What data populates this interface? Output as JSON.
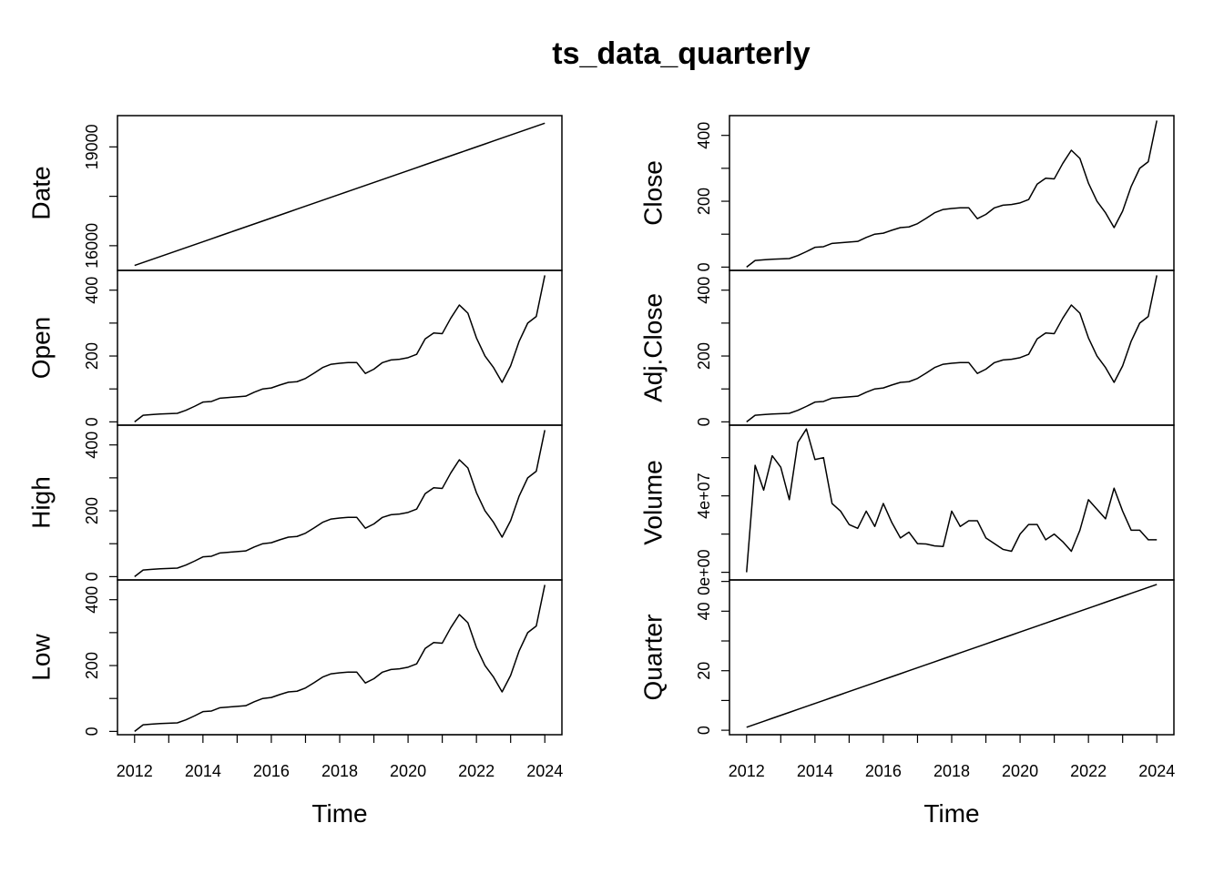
{
  "chart_data": {
    "type": "line",
    "title": "ts_data_quarterly",
    "xlabel": "Time",
    "xlim": [
      2011.5,
      2024.5
    ],
    "x_ticks": [
      "2012",
      "2014",
      "2016",
      "2018",
      "2020",
      "2022",
      "2024"
    ],
    "x_tick_values": [
      2012,
      2014,
      2016,
      2018,
      2020,
      2022,
      2024
    ],
    "x_start": 2012.0,
    "x_step": 0.25,
    "columns": [
      {
        "series": [
          {
            "name": "Date",
            "ylim": [
              15250,
              19950
            ],
            "y_ticks": [
              "16000",
              "19000"
            ],
            "y_tick_values": [
              16000,
              19000
            ],
            "values": [
              15400,
              15490,
              15580,
              15670,
              15760,
              15850,
              15940,
              16030,
              16120,
              16210,
              16300,
              16390,
              16480,
              16570,
              16660,
              16750,
              16840,
              16930,
              17020,
              17110,
              17200,
              17290,
              17380,
              17470,
              17560,
              17650,
              17740,
              17830,
              17920,
              18010,
              18100,
              18190,
              18280,
              18370,
              18460,
              18550,
              18640,
              18730,
              18820,
              18910,
              19000,
              19090,
              19180,
              19270,
              19360,
              19450,
              19540,
              19630,
              19720
            ]
          },
          {
            "name": "Open",
            "ylim": [
              -10,
              460
            ],
            "y_ticks": [
              "0",
              "200",
              "400"
            ],
            "y_tick_values": [
              0,
              200,
              400
            ],
            "values": [
              0,
              20,
              22,
              24,
              25,
              26,
              35,
              47,
              60,
              62,
              72,
              74,
              76,
              78,
              90,
              100,
              103,
              112,
              120,
              122,
              132,
              148,
              165,
              175,
              178,
              180,
              180,
              147,
              160,
              180,
              188,
              190,
              195,
              205,
              252,
              270,
              268,
              315,
              355,
              330,
              255,
              200,
              165,
              120,
              170,
              245,
              300,
              320,
              445
            ]
          },
          {
            "name": "High",
            "ylim": [
              -10,
              460
            ],
            "y_ticks": [
              "0",
              "200",
              "400"
            ],
            "y_tick_values": [
              0,
              200,
              400
            ],
            "values": [
              0,
              20,
              22,
              24,
              25,
              26,
              35,
              47,
              60,
              62,
              72,
              74,
              76,
              78,
              90,
              100,
              103,
              112,
              120,
              122,
              132,
              148,
              165,
              175,
              178,
              180,
              180,
              147,
              160,
              180,
              188,
              190,
              195,
              205,
              252,
              270,
              268,
              315,
              355,
              330,
              255,
              200,
              165,
              120,
              170,
              245,
              300,
              320,
              445
            ]
          },
          {
            "name": "Low",
            "ylim": [
              -10,
              460
            ],
            "y_ticks": [
              "0",
              "200",
              "400"
            ],
            "y_tick_values": [
              0,
              200,
              400
            ],
            "values": [
              0,
              20,
              22,
              24,
              25,
              26,
              35,
              47,
              60,
              62,
              72,
              74,
              76,
              78,
              90,
              100,
              103,
              112,
              120,
              122,
              132,
              148,
              165,
              175,
              178,
              180,
              180,
              147,
              160,
              180,
              188,
              190,
              195,
              205,
              252,
              270,
              268,
              315,
              355,
              330,
              255,
              200,
              165,
              120,
              170,
              245,
              300,
              320,
              445
            ]
          }
        ]
      },
      {
        "series": [
          {
            "name": "Close",
            "ylim": [
              -10,
              460
            ],
            "y_ticks": [
              "0",
              "200",
              "400"
            ],
            "y_tick_values": [
              0,
              200,
              400
            ],
            "values": [
              0,
              20,
              22,
              24,
              25,
              26,
              35,
              47,
              60,
              62,
              72,
              74,
              76,
              78,
              90,
              100,
              103,
              112,
              120,
              122,
              132,
              148,
              165,
              175,
              178,
              180,
              180,
              147,
              160,
              180,
              188,
              190,
              195,
              205,
              252,
              270,
              268,
              315,
              355,
              330,
              255,
              200,
              165,
              120,
              170,
              245,
              300,
              320,
              445
            ]
          },
          {
            "name": "Adj.Close",
            "ylim": [
              -10,
              460
            ],
            "y_ticks": [
              "0",
              "200",
              "400"
            ],
            "y_tick_values": [
              0,
              200,
              400
            ],
            "values": [
              0,
              20,
              22,
              24,
              25,
              26,
              35,
              47,
              60,
              62,
              72,
              74,
              76,
              78,
              90,
              100,
              103,
              112,
              120,
              122,
              132,
              148,
              165,
              175,
              178,
              180,
              180,
              147,
              160,
              180,
              188,
              190,
              195,
              205,
              252,
              270,
              268,
              315,
              355,
              330,
              255,
              200,
              165,
              120,
              170,
              245,
              300,
              320,
              445
            ]
          },
          {
            "name": "Volume",
            "ylim": [
              -4000000,
              77000000
            ],
            "y_ticks": [
              "0e+00",
              "4e+07"
            ],
            "y_tick_values": [
              0,
              40000000
            ],
            "values": [
              0,
              56000000,
              43000000,
              61000000,
              55000000,
              38000000,
              68000000,
              75000000,
              59000000,
              60000000,
              36000000,
              32000000,
              25000000,
              23000000,
              32000000,
              24000000,
              36000000,
              26000000,
              18000000,
              21000000,
              15000000,
              14800000,
              13800000,
              13500000,
              32000000,
              24000000,
              27000000,
              27000000,
              18000000,
              15000000,
              12000000,
              11000000,
              20000000,
              25000000,
              25000000,
              17000000,
              20000000,
              16000000,
              11000000,
              22000000,
              38000000,
              33000000,
              28000000,
              44000000,
              32000000,
              22000000,
              22000000,
              17000000,
              17000000
            ]
          },
          {
            "name": "Quarter",
            "ylim": [
              -1.5,
              50.5
            ],
            "y_ticks": [
              "0",
              "20",
              "40"
            ],
            "y_tick_values": [
              0,
              20,
              40
            ],
            "values": [
              1,
              2,
              3,
              4,
              5,
              6,
              7,
              8,
              9,
              10,
              11,
              12,
              13,
              14,
              15,
              16,
              17,
              18,
              19,
              20,
              21,
              22,
              23,
              24,
              25,
              26,
              27,
              28,
              29,
              30,
              31,
              32,
              33,
              34,
              35,
              36,
              37,
              38,
              39,
              40,
              41,
              42,
              43,
              44,
              45,
              46,
              47,
              48,
              49
            ]
          }
        ]
      }
    ]
  }
}
